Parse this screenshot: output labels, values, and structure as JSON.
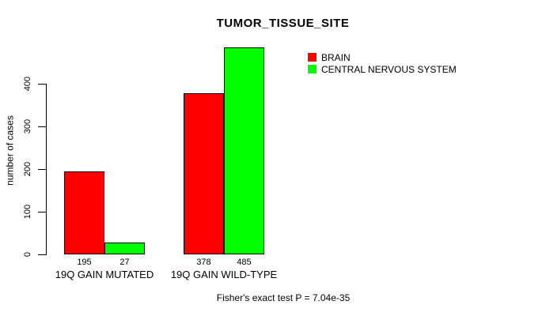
{
  "title": "TUMOR_TISSUE_SITE",
  "footer": "Fisher's exact test P = 7.04e-35",
  "chart_data": {
    "type": "bar",
    "title": "TUMOR_TISSUE_SITE",
    "xlabel": "",
    "ylabel": "number of cases",
    "categories": [
      "19Q GAIN MUTATED",
      "19Q GAIN WILD-TYPE"
    ],
    "series": [
      {
        "name": "BRAIN",
        "color": "#FF0000",
        "values": [
          195,
          378
        ]
      },
      {
        "name": "CENTRAL NERVOUS SYSTEM",
        "color": "#00FF00",
        "values": [
          27,
          485
        ]
      }
    ],
    "value_labels": [
      [
        "195",
        "27"
      ],
      [
        "378",
        "485"
      ]
    ],
    "yticks": [
      0,
      100,
      200,
      300,
      400
    ],
    "ylim": [
      0,
      485
    ],
    "grid": false,
    "legend_position": "top-right",
    "annotation": "Fisher's exact test P = 7.04e-35"
  }
}
